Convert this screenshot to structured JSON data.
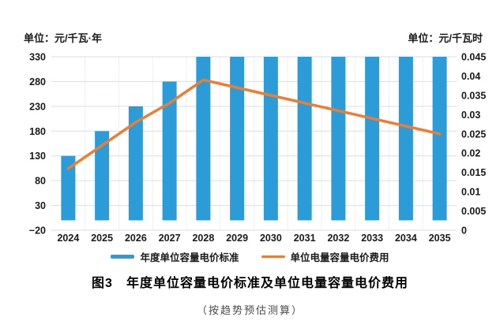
{
  "header": {
    "unit_left": "单位：元/千瓦·年",
    "unit_right": "单位：元/千瓦时"
  },
  "chart_data": {
    "type": "bar",
    "title": "图3　年度单位容量电价标准及单位电量容量电价费用",
    "subtitle": "（按趋势预估测算）",
    "categories": [
      "2024",
      "2025",
      "2026",
      "2027",
      "2028",
      "2029",
      "2030",
      "2031",
      "2032",
      "2033",
      "2034",
      "2035"
    ],
    "series": [
      {
        "name": "年度单位容量电价标准",
        "type": "bar",
        "axis": "left",
        "color": "#2B9CD8",
        "values": [
          130,
          180,
          230,
          280,
          330,
          330,
          330,
          330,
          330,
          330,
          330,
          330
        ]
      },
      {
        "name": "单位电量容量电价费用",
        "type": "line",
        "axis": "right",
        "color": "#ED7D31",
        "values": [
          0.016,
          0.022,
          0.028,
          0.033,
          0.039,
          0.037,
          0.035,
          0.033,
          0.031,
          0.029,
          0.027,
          0.025
        ]
      }
    ],
    "left_axis": {
      "label": "单位：元/千瓦·年",
      "min": -20,
      "max": 330,
      "ticks": [
        330,
        280,
        230,
        180,
        130,
        80,
        30,
        -20
      ]
    },
    "right_axis": {
      "label": "单位：元/千瓦时",
      "min": 0,
      "max": 0.045,
      "ticks": [
        0.045,
        0.04,
        0.035,
        0.03,
        0.025,
        0.02,
        0.015,
        0.01,
        0.005,
        0
      ]
    },
    "grid": true,
    "legend_position": "bottom",
    "bar_baseline": 0
  },
  "colors": {
    "bar": "#2B9CD8",
    "line": "#ED7D31",
    "gridline": "#D9DEE3",
    "vgridline": "#EDF1F5",
    "text": "#1a1a1a"
  }
}
